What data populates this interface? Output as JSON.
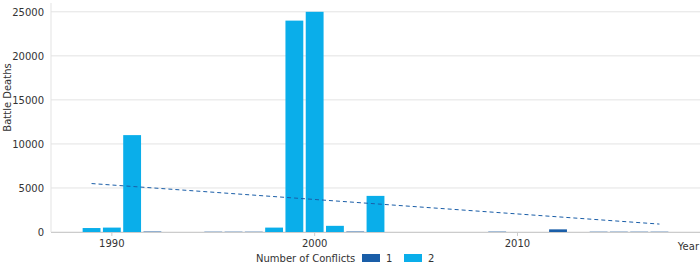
{
  "chart_data": {
    "type": "bar",
    "x_label": "Year",
    "y_label": "Battle Deaths",
    "legend_title": "Number of Conflicts",
    "x": [
      1989,
      1990,
      1991,
      1992,
      1993,
      1994,
      1995,
      1996,
      1997,
      1998,
      1999,
      2000,
      2001,
      2002,
      2003,
      2004,
      2005,
      2006,
      2007,
      2008,
      2009,
      2010,
      2011,
      2012,
      2013,
      2014,
      2015,
      2016,
      2017
    ],
    "series": [
      {
        "name": "1",
        "color": "#1a5ea8",
        "values": [
          null,
          null,
          null,
          50,
          null,
          null,
          30,
          30,
          30,
          null,
          null,
          null,
          null,
          50,
          null,
          null,
          null,
          null,
          null,
          null,
          40,
          null,
          null,
          300,
          null,
          30,
          30,
          30,
          30
        ]
      },
      {
        "name": "2",
        "color": "#0aaeea",
        "values": [
          450,
          500,
          11000,
          null,
          null,
          null,
          null,
          null,
          null,
          500,
          24000,
          25000,
          700,
          null,
          4100,
          null,
          null,
          null,
          null,
          null,
          null,
          null,
          null,
          null,
          null,
          null,
          null,
          null,
          null
        ]
      }
    ],
    "trend": {
      "x": [
        1989,
        2017
      ],
      "values": [
        5500,
        900
      ],
      "color": "#1a5ea8",
      "line_style": "dashed"
    },
    "xlim": [
      1987,
      2019
    ],
    "xticks": [
      1990,
      2000,
      2010
    ],
    "ylim": [
      0,
      26000
    ],
    "yticks": [
      0,
      5000,
      10000,
      15000,
      20000,
      25000
    ],
    "grid": true,
    "legend": "bottom"
  }
}
